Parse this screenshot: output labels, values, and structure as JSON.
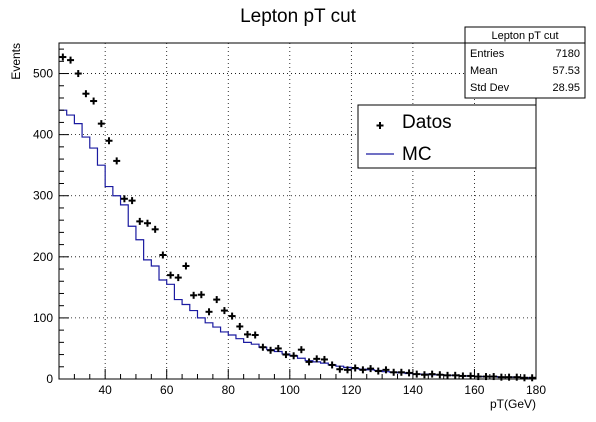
{
  "chart_data": {
    "type": "histogram",
    "title": "Lepton pT cut",
    "xlabel": "pT(GeV)",
    "ylabel": "Events",
    "xlim": [
      25,
      180
    ],
    "ylim": [
      0,
      550
    ],
    "x_ticks": [
      40,
      60,
      80,
      100,
      120,
      140,
      160,
      180
    ],
    "y_ticks": [
      0,
      100,
      200,
      300,
      400,
      500
    ],
    "grid": true,
    "bin_width": 2.5,
    "bin_centers": [
      26.25,
      28.75,
      31.25,
      33.75,
      36.25,
      38.75,
      41.25,
      43.75,
      46.25,
      48.75,
      51.25,
      53.75,
      56.25,
      58.75,
      61.25,
      63.75,
      66.25,
      68.75,
      71.25,
      73.75,
      76.25,
      78.75,
      81.25,
      83.75,
      86.25,
      88.75,
      91.25,
      93.75,
      96.25,
      98.75,
      101.25,
      103.75,
      106.25,
      108.75,
      111.25,
      113.75,
      116.25,
      118.75,
      121.25,
      123.75,
      126.25,
      128.75,
      131.25,
      133.75,
      136.25,
      138.75,
      141.25,
      143.75,
      146.25,
      148.75,
      151.25,
      153.75,
      156.25,
      158.75,
      161.25,
      163.75,
      166.25,
      168.75,
      171.25,
      173.75,
      176.25,
      178.75
    ],
    "series": [
      {
        "name": "Datos",
        "style": "points",
        "values": [
          527,
          522,
          500,
          467,
          455,
          418,
          390,
          357,
          295,
          292,
          258,
          255,
          245,
          203,
          170,
          166,
          185,
          137,
          138,
          110,
          130,
          112,
          103,
          86,
          73,
          72,
          52,
          47,
          50,
          40,
          38,
          48,
          28,
          33,
          32,
          23,
          16,
          15,
          18,
          15,
          17,
          13,
          15,
          11,
          11,
          10,
          8,
          7,
          8,
          7,
          6,
          6,
          5,
          5,
          4,
          4,
          4,
          3,
          3,
          3,
          2,
          2
        ]
      },
      {
        "name": "MC",
        "style": "step",
        "color": "#1a1aa0",
        "values": [
          440,
          432,
          418,
          396,
          378,
          350,
          315,
          300,
          285,
          250,
          228,
          195,
          185,
          162,
          155,
          130,
          122,
          112,
          100,
          92,
          85,
          77,
          72,
          66,
          60,
          57,
          52,
          48,
          45,
          41,
          38,
          34,
          30,
          28,
          26,
          23,
          21,
          19,
          17,
          16,
          15,
          14,
          12,
          11,
          10,
          9,
          8,
          8,
          7,
          7,
          6,
          6,
          5,
          5,
          4,
          4,
          4,
          3,
          3,
          3,
          2,
          2
        ]
      }
    ],
    "stats_box": {
      "title": "Lepton pT cut",
      "entries_label": "Entries",
      "entries": "7180",
      "mean_label": "Mean",
      "mean": "57.53",
      "std_label": "Std Dev",
      "std": "28.95"
    },
    "legend": {
      "position": "top-right",
      "items": [
        "Datos",
        "MC"
      ]
    }
  }
}
